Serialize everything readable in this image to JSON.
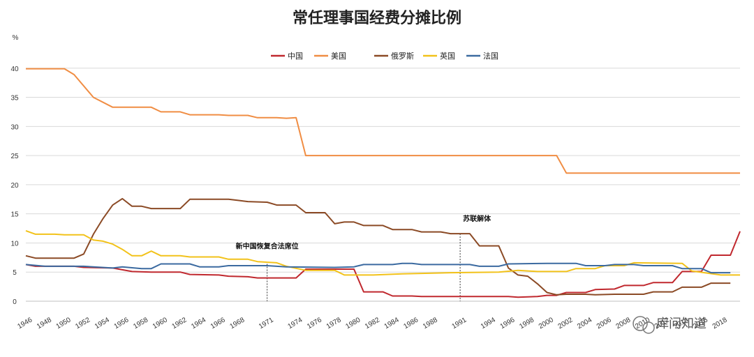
{
  "chart_data": {
    "type": "line",
    "title": "常任理事国经费分摊比例",
    "ylabel": "%",
    "xlabel": "",
    "xlim": [
      1946,
      2020
    ],
    "ylim": [
      0,
      45
    ],
    "y_ticks": [
      0,
      5,
      10,
      15,
      20,
      25,
      30,
      35,
      40
    ],
    "x_ticks": [
      1946,
      1948,
      1950,
      1952,
      1954,
      1956,
      1958,
      1960,
      1962,
      1964,
      1966,
      1968,
      1971,
      1974,
      1976,
      1978,
      1980,
      1982,
      1984,
      1986,
      1988,
      1991,
      1994,
      1996,
      1998,
      2000,
      2002,
      2004,
      2006,
      2008,
      2010,
      2012,
      2014,
      2016,
      2018
    ],
    "x_tick_labels": [
      "1946",
      "1948",
      "1950",
      "1952",
      "1954",
      "1956",
      "1958",
      "1960",
      "1962",
      "1964",
      "1966",
      "1968",
      "1971",
      "1974",
      "1976",
      "1978",
      "1980",
      "1982",
      "1984",
      "1986",
      "1988",
      "1991",
      "1994",
      "1996",
      "1998",
      "2000",
      "2002",
      "2004",
      "2006",
      "2008",
      "2010",
      "2012",
      "2014",
      "2016",
      "2018"
    ],
    "grid": true,
    "legend_position": "top-center",
    "series": [
      {
        "name": "中国",
        "color": "#c0282e",
        "points": [
          [
            1946,
            6.3
          ],
          [
            1947,
            6.0
          ],
          [
            1951,
            6.0
          ],
          [
            1952,
            5.8
          ],
          [
            1955,
            5.7
          ],
          [
            1957,
            5.1
          ],
          [
            1959,
            5.0
          ],
          [
            1962,
            5.0
          ],
          [
            1963,
            4.6
          ],
          [
            1966,
            4.5
          ],
          [
            1967,
            4.3
          ],
          [
            1969,
            4.2
          ],
          [
            1970,
            4.0
          ],
          [
            1974,
            4.0
          ],
          [
            1975,
            5.5
          ],
          [
            1980,
            5.5
          ],
          [
            1981,
            1.6
          ],
          [
            1983,
            1.6
          ],
          [
            1984,
            0.9
          ],
          [
            1986,
            0.9
          ],
          [
            1987,
            0.8
          ],
          [
            1996,
            0.8
          ],
          [
            1997,
            0.7
          ],
          [
            1999,
            0.8
          ],
          [
            2000,
            1.0
          ],
          [
            2001,
            1.0
          ],
          [
            2002,
            1.5
          ],
          [
            2004,
            1.5
          ],
          [
            2005,
            2.0
          ],
          [
            2007,
            2.1
          ],
          [
            2008,
            2.7
          ],
          [
            2010,
            2.7
          ],
          [
            2011,
            3.2
          ],
          [
            2013,
            3.2
          ],
          [
            2014,
            5.1
          ],
          [
            2016,
            5.1
          ],
          [
            2017,
            7.9
          ],
          [
            2019,
            7.9
          ],
          [
            2020,
            12.0
          ]
        ]
      },
      {
        "name": "美国",
        "color": "#f08d43",
        "points": [
          [
            1946,
            39.9
          ],
          [
            1950,
            39.9
          ],
          [
            1951,
            38.9
          ],
          [
            1953,
            35.0
          ],
          [
            1955,
            33.3
          ],
          [
            1959,
            33.3
          ],
          [
            1960,
            32.5
          ],
          [
            1962,
            32.5
          ],
          [
            1963,
            32.0
          ],
          [
            1966,
            32.0
          ],
          [
            1967,
            31.9
          ],
          [
            1969,
            31.9
          ],
          [
            1970,
            31.5
          ],
          [
            1972,
            31.5
          ],
          [
            1973,
            31.4
          ],
          [
            1974,
            31.5
          ],
          [
            1975,
            25.0
          ],
          [
            2000,
            25.0
          ],
          [
            2001,
            25.0
          ],
          [
            2002,
            22.0
          ],
          [
            2020,
            22.0
          ]
        ]
      },
      {
        "name": "俄罗斯",
        "color": "#8b4a25",
        "points": [
          [
            1946,
            7.8
          ],
          [
            1947,
            7.4
          ],
          [
            1951,
            7.4
          ],
          [
            1952,
            8.1
          ],
          [
            1953,
            11.5
          ],
          [
            1954,
            14.2
          ],
          [
            1955,
            16.5
          ],
          [
            1956,
            17.6
          ],
          [
            1957,
            16.3
          ],
          [
            1958,
            16.3
          ],
          [
            1959,
            15.9
          ],
          [
            1962,
            15.9
          ],
          [
            1963,
            17.5
          ],
          [
            1967,
            17.5
          ],
          [
            1968,
            17.3
          ],
          [
            1969,
            17.1
          ],
          [
            1971,
            17.0
          ],
          [
            1972,
            16.5
          ],
          [
            1974,
            16.5
          ],
          [
            1975,
            15.2
          ],
          [
            1977,
            15.2
          ],
          [
            1978,
            13.3
          ],
          [
            1979,
            13.6
          ],
          [
            1980,
            13.6
          ],
          [
            1981,
            13.0
          ],
          [
            1983,
            13.0
          ],
          [
            1984,
            12.3
          ],
          [
            1986,
            12.3
          ],
          [
            1987,
            11.9
          ],
          [
            1989,
            11.9
          ],
          [
            1990,
            11.6
          ],
          [
            1992,
            11.6
          ],
          [
            1993,
            9.5
          ],
          [
            1995,
            9.5
          ],
          [
            1996,
            5.7
          ],
          [
            1997,
            4.5
          ],
          [
            1998,
            4.3
          ],
          [
            1999,
            3.0
          ],
          [
            2000,
            1.5
          ],
          [
            2001,
            1.1
          ],
          [
            2002,
            1.2
          ],
          [
            2004,
            1.2
          ],
          [
            2005,
            1.1
          ],
          [
            2007,
            1.2
          ],
          [
            2008,
            1.2
          ],
          [
            2010,
            1.2
          ],
          [
            2011,
            1.6
          ],
          [
            2013,
            1.6
          ],
          [
            2014,
            2.4
          ],
          [
            2016,
            2.4
          ],
          [
            2017,
            3.1
          ],
          [
            2019,
            3.1
          ]
        ]
      },
      {
        "name": "英国",
        "color": "#f2c21a",
        "points": [
          [
            1946,
            12.1
          ],
          [
            1947,
            11.5
          ],
          [
            1949,
            11.5
          ],
          [
            1950,
            11.4
          ],
          [
            1952,
            11.4
          ],
          [
            1953,
            10.5
          ],
          [
            1954,
            10.3
          ],
          [
            1955,
            9.8
          ],
          [
            1956,
            8.9
          ],
          [
            1957,
            7.8
          ],
          [
            1958,
            7.8
          ],
          [
            1959,
            8.6
          ],
          [
            1960,
            7.8
          ],
          [
            1962,
            7.8
          ],
          [
            1963,
            7.6
          ],
          [
            1966,
            7.6
          ],
          [
            1967,
            7.2
          ],
          [
            1969,
            7.2
          ],
          [
            1970,
            6.8
          ],
          [
            1972,
            6.6
          ],
          [
            1973,
            6.0
          ],
          [
            1975,
            5.3
          ],
          [
            1978,
            5.3
          ],
          [
            1979,
            4.5
          ],
          [
            1982,
            4.5
          ],
          [
            1985,
            4.7
          ],
          [
            1990,
            4.9
          ],
          [
            1995,
            5.0
          ],
          [
            1997,
            5.3
          ],
          [
            1999,
            5.1
          ],
          [
            2002,
            5.1
          ],
          [
            2003,
            5.6
          ],
          [
            2005,
            5.6
          ],
          [
            2006,
            6.1
          ],
          [
            2008,
            6.1
          ],
          [
            2009,
            6.6
          ],
          [
            2014,
            6.5
          ],
          [
            2015,
            5.2
          ],
          [
            2018,
            4.5
          ],
          [
            2020,
            4.5
          ]
        ]
      },
      {
        "name": "法国",
        "color": "#3b6aa0",
        "points": [
          [
            1946,
            6.3
          ],
          [
            1948,
            6.0
          ],
          [
            1952,
            6.0
          ],
          [
            1955,
            5.7
          ],
          [
            1956,
            5.9
          ],
          [
            1958,
            5.6
          ],
          [
            1959,
            5.6
          ],
          [
            1960,
            6.4
          ],
          [
            1963,
            6.4
          ],
          [
            1964,
            5.9
          ],
          [
            1966,
            5.9
          ],
          [
            1967,
            6.1
          ],
          [
            1971,
            6.1
          ],
          [
            1973,
            5.9
          ],
          [
            1978,
            5.8
          ],
          [
            1980,
            5.9
          ],
          [
            1981,
            6.3
          ],
          [
            1984,
            6.3
          ],
          [
            1985,
            6.5
          ],
          [
            1986,
            6.5
          ],
          [
            1987,
            6.3
          ],
          [
            1991,
            6.3
          ],
          [
            1992,
            6.3
          ],
          [
            1993,
            6.0
          ],
          [
            1995,
            6.0
          ],
          [
            1996,
            6.4
          ],
          [
            2000,
            6.5
          ],
          [
            2003,
            6.5
          ],
          [
            2004,
            6.1
          ],
          [
            2006,
            6.1
          ],
          [
            2007,
            6.3
          ],
          [
            2008,
            6.3
          ],
          [
            2009,
            6.3
          ],
          [
            2010,
            6.1
          ],
          [
            2013,
            6.1
          ],
          [
            2014,
            5.6
          ],
          [
            2016,
            5.6
          ],
          [
            2017,
            4.9
          ],
          [
            2019,
            4.9
          ]
        ]
      }
    ],
    "annotations": [
      {
        "text": "新中国恢复合法席位",
        "year": 1971,
        "value": 6.4
      },
      {
        "text": "苏联解体",
        "year": 1991,
        "value": 11.6
      }
    ]
  },
  "watermark": "库问知道"
}
